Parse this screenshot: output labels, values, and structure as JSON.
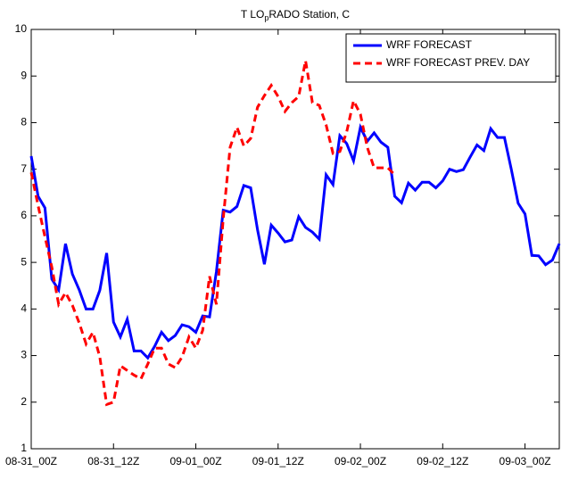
{
  "chart_data": {
    "type": "line",
    "title": [
      "T LO",
      "p",
      "RADO Station, C"
    ],
    "x": [
      0,
      1,
      2,
      3,
      4,
      5,
      6,
      7,
      8,
      9,
      10,
      11,
      12,
      13,
      14,
      15,
      16,
      17,
      18,
      19,
      20,
      21,
      22,
      23,
      24,
      25,
      26,
      27,
      28,
      29,
      30,
      31,
      32,
      33,
      34,
      35,
      36,
      37,
      38,
      39,
      40,
      41,
      42,
      43,
      44,
      45,
      46,
      47,
      48,
      49,
      50,
      51,
      52,
      53,
      54,
      55,
      56,
      57,
      58,
      59,
      60,
      61,
      62,
      63,
      64,
      65,
      66,
      67,
      68,
      69,
      70,
      71,
      72,
      73,
      74,
      75,
      76,
      77
    ],
    "series": [
      {
        "name": "WRF FORECAST",
        "color": "#0000ff",
        "dash": false,
        "values": [
          7.28,
          6.42,
          6.17,
          4.64,
          4.41,
          5.4,
          4.75,
          4.41,
          4.0,
          4.0,
          4.4,
          5.2,
          3.72,
          3.4,
          3.78,
          3.1,
          3.1,
          2.95,
          3.2,
          3.5,
          3.32,
          3.43,
          3.66,
          3.62,
          3.5,
          3.85,
          3.83,
          4.8,
          6.12,
          6.08,
          6.2,
          6.65,
          6.6,
          5.7,
          4.96,
          5.8,
          5.63,
          5.44,
          5.48,
          5.98,
          5.75,
          5.65,
          5.5,
          6.88,
          6.67,
          7.72,
          7.55,
          7.18,
          7.9,
          7.6,
          7.78,
          7.58,
          7.47,
          6.42,
          6.28,
          6.7,
          6.55,
          6.72,
          6.72,
          6.6,
          6.75,
          7.0,
          6.95,
          6.99,
          7.26,
          7.52,
          7.4,
          7.87,
          7.68,
          7.68,
          7.0,
          6.27,
          6.04,
          5.15,
          5.14,
          4.95,
          5.05,
          5.4
        ]
      },
      {
        "name": "WRF FORECAST PREV. DAY",
        "color": "#ff0000",
        "dash": true,
        "values": [
          6.93,
          6.22,
          5.55,
          4.9,
          4.1,
          4.35,
          4.08,
          3.7,
          3.25,
          3.5,
          2.97,
          1.95,
          2.0,
          2.78,
          2.68,
          2.58,
          2.5,
          2.82,
          3.16,
          3.16,
          2.82,
          2.74,
          2.97,
          3.4,
          3.16,
          3.54,
          4.7,
          4.1,
          5.94,
          7.47,
          7.9,
          7.5,
          7.66,
          8.33,
          8.58,
          8.8,
          8.56,
          8.24,
          8.43,
          8.56,
          9.33,
          8.43,
          8.37,
          7.95,
          7.34,
          7.38,
          7.8,
          8.47,
          8.18,
          7.47,
          7.03,
          7.03,
          7.03,
          6.88,
          null,
          null,
          null,
          null,
          null,
          null,
          null,
          null,
          null,
          null,
          null,
          null,
          null,
          null,
          null,
          null,
          null,
          null,
          null,
          null,
          null,
          null,
          null,
          null
        ]
      }
    ],
    "xlim": [
      0,
      77
    ],
    "xticks": [
      {
        "value": 0,
        "label": "08-31_00Z"
      },
      {
        "value": 12,
        "label": "08-31_12Z"
      },
      {
        "value": 24,
        "label": "09-01_00Z"
      },
      {
        "value": 36,
        "label": "09-01_12Z"
      },
      {
        "value": 48,
        "label": "09-02_00Z"
      },
      {
        "value": 60,
        "label": "09-02_12Z"
      },
      {
        "value": 72,
        "label": "09-03_00Z"
      }
    ],
    "ylim": [
      1,
      10
    ],
    "yticks": [
      1,
      2,
      3,
      4,
      5,
      6,
      7,
      8,
      9,
      10
    ],
    "grid": false,
    "legend": "top-right"
  }
}
